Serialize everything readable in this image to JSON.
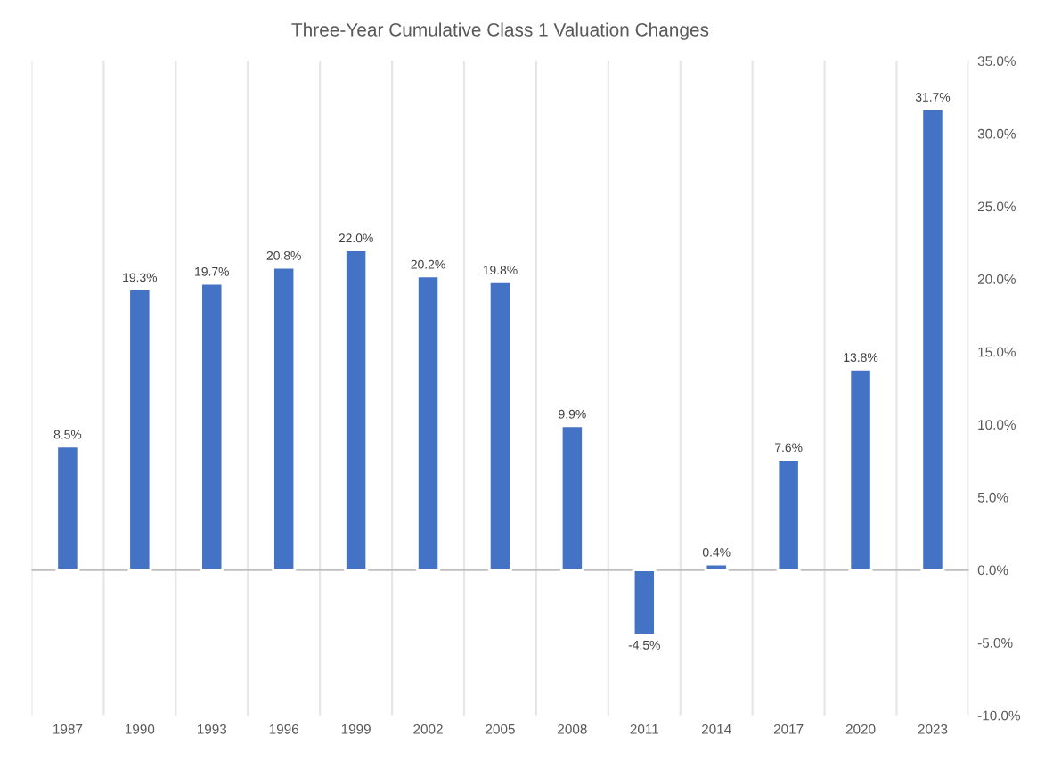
{
  "chart_data": {
    "type": "bar",
    "title": "Three-Year Cumulative Class 1 Valuation Changes",
    "categories": [
      "1987",
      "1990",
      "1993",
      "1996",
      "1999",
      "2002",
      "2005",
      "2008",
      "2011",
      "2014",
      "2017",
      "2020",
      "2023"
    ],
    "values": [
      8.5,
      19.3,
      19.7,
      20.8,
      22.0,
      20.2,
      19.8,
      9.9,
      -4.5,
      0.4,
      7.6,
      13.8,
      31.7
    ],
    "value_labels": [
      "8.5%",
      "19.3%",
      "19.7%",
      "20.8%",
      "22.0%",
      "20.2%",
      "19.8%",
      "9.9%",
      "-4.5%",
      "0.4%",
      "7.6%",
      "13.8%",
      "31.7%"
    ],
    "color": "#4472c4",
    "ylim": [
      -10,
      35
    ],
    "yticks": [
      {
        "value": -10,
        "label": "-10.0%"
      },
      {
        "value": -5,
        "label": "-5.0%"
      },
      {
        "value": 0,
        "label": "0.0%"
      },
      {
        "value": 5,
        "label": "5.0%"
      },
      {
        "value": 10,
        "label": "10.0%"
      },
      {
        "value": 15,
        "label": "15.0%"
      },
      {
        "value": 20,
        "label": "20.0%"
      },
      {
        "value": 25,
        "label": "25.0%"
      },
      {
        "value": 30,
        "label": "30.0%"
      },
      {
        "value": 35,
        "label": "35.0%"
      }
    ],
    "grid": "x"
  }
}
